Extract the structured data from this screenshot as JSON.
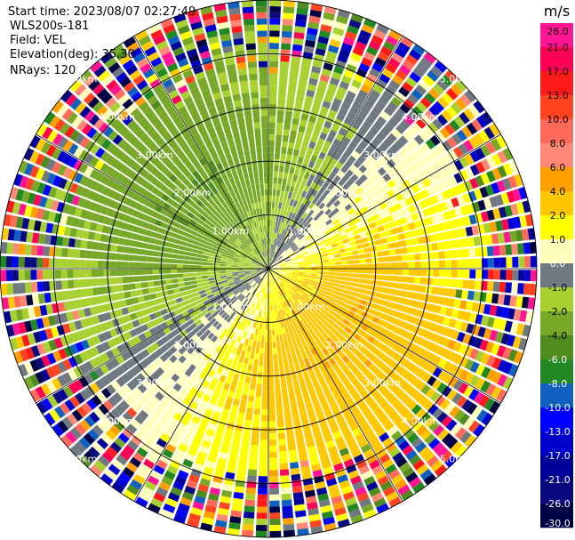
{
  "header": {
    "start_time": "Start time: 2023/08/07 02:27:49",
    "instrument": "WLS200s-181",
    "field": "Field: VEL",
    "elevation": "Elevation(deg): 35.30",
    "nrays": "NRays: 120"
  },
  "chart_data": {
    "type": "heatmap",
    "projection": "polar PPI",
    "field": "VEL",
    "units": "m/s",
    "nrays": 120,
    "elevation_deg": 35.3,
    "range_rings_km": [
      1.0,
      2.0,
      3.0,
      4.0,
      5.0
    ],
    "ring_labels": [
      "1.00km",
      "2.00km",
      "3.00km",
      "4.00km",
      "5.00km"
    ],
    "max_range_km": 5.0,
    "colorbar": {
      "title": "m/s",
      "ticks": [
        "26.0",
        "21.0",
        "17.0",
        "13.0",
        "10.0",
        "8.0",
        "6.0",
        "4.0",
        "2.0",
        "1.0",
        "0.0",
        "-1.0",
        "-2.0",
        "-4.0",
        "-6.0",
        "-8.0",
        "-10.0",
        "-13.0",
        "-17.0",
        "-21.0",
        "-26.0",
        "-30.0"
      ],
      "colors": [
        "#ff1493",
        "#ff0055",
        "#ff1a1a",
        "#ff4422",
        "#ff6a5a",
        "#ff8877",
        "#ff9f00",
        "#ffc800",
        "#ffff00",
        "#ffffbb",
        "#707880",
        "#a8d030",
        "#78a828",
        "#4f8b1f",
        "#228822",
        "#1060c0",
        "#0000ff",
        "#0000cc",
        "#000099",
        "#0a0a80",
        "#000044"
      ]
    },
    "pattern": "north-west half mostly -1 to -6 m/s (greens), south-east half mostly +1 to +6 m/s (yellows/orange), noisy multicolor returns beyond ~3.5 km"
  }
}
